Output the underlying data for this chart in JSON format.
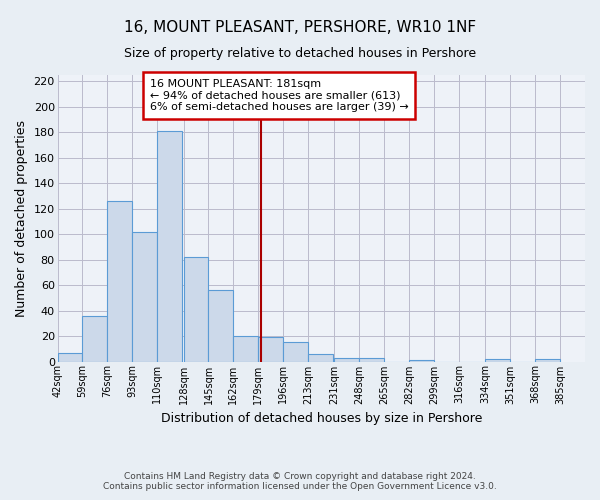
{
  "title": "16, MOUNT PLEASANT, PERSHORE, WR10 1NF",
  "subtitle": "Size of property relative to detached houses in Pershore",
  "xlabel": "Distribution of detached houses by size in Pershore",
  "ylabel": "Number of detached properties",
  "bar_left_edges": [
    42,
    59,
    76,
    93,
    110,
    128,
    145,
    162,
    179,
    196,
    213,
    231,
    248,
    265,
    282,
    299,
    316,
    334,
    351,
    368
  ],
  "bar_heights": [
    7,
    36,
    126,
    102,
    181,
    82,
    56,
    20,
    19,
    15,
    6,
    3,
    3,
    0,
    1,
    0,
    0,
    2,
    0,
    2
  ],
  "bin_width": 17,
  "bar_color": "#ccd9ea",
  "bar_edge_color": "#5b9bd5",
  "vline_x": 181,
  "vline_color": "#aa0000",
  "annotation_line1": "16 MOUNT PLEASANT: 181sqm",
  "annotation_line2": "← 94% of detached houses are smaller (613)",
  "annotation_line3": "6% of semi-detached houses are larger (39) →",
  "annotation_box_color": "#ffffff",
  "annotation_box_edge": "#cc0000",
  "xlim_left": 42,
  "xlim_right": 402,
  "ylim_top": 225,
  "yticks": [
    0,
    20,
    40,
    60,
    80,
    100,
    120,
    140,
    160,
    180,
    200,
    220
  ],
  "tick_labels": [
    "42sqm",
    "59sqm",
    "76sqm",
    "93sqm",
    "110sqm",
    "128sqm",
    "145sqm",
    "162sqm",
    "179sqm",
    "196sqm",
    "213sqm",
    "231sqm",
    "248sqm",
    "265sqm",
    "282sqm",
    "299sqm",
    "316sqm",
    "334sqm",
    "351sqm",
    "368sqm",
    "385sqm"
  ],
  "tick_positions": [
    42,
    59,
    76,
    93,
    110,
    128,
    145,
    162,
    179,
    196,
    213,
    231,
    248,
    265,
    282,
    299,
    316,
    334,
    351,
    368,
    385
  ],
  "footer_line1": "Contains HM Land Registry data © Crown copyright and database right 2024.",
  "footer_line2": "Contains public sector information licensed under the Open Government Licence v3.0.",
  "background_color": "#e8eef4",
  "plot_bg_color": "#eef2f8"
}
